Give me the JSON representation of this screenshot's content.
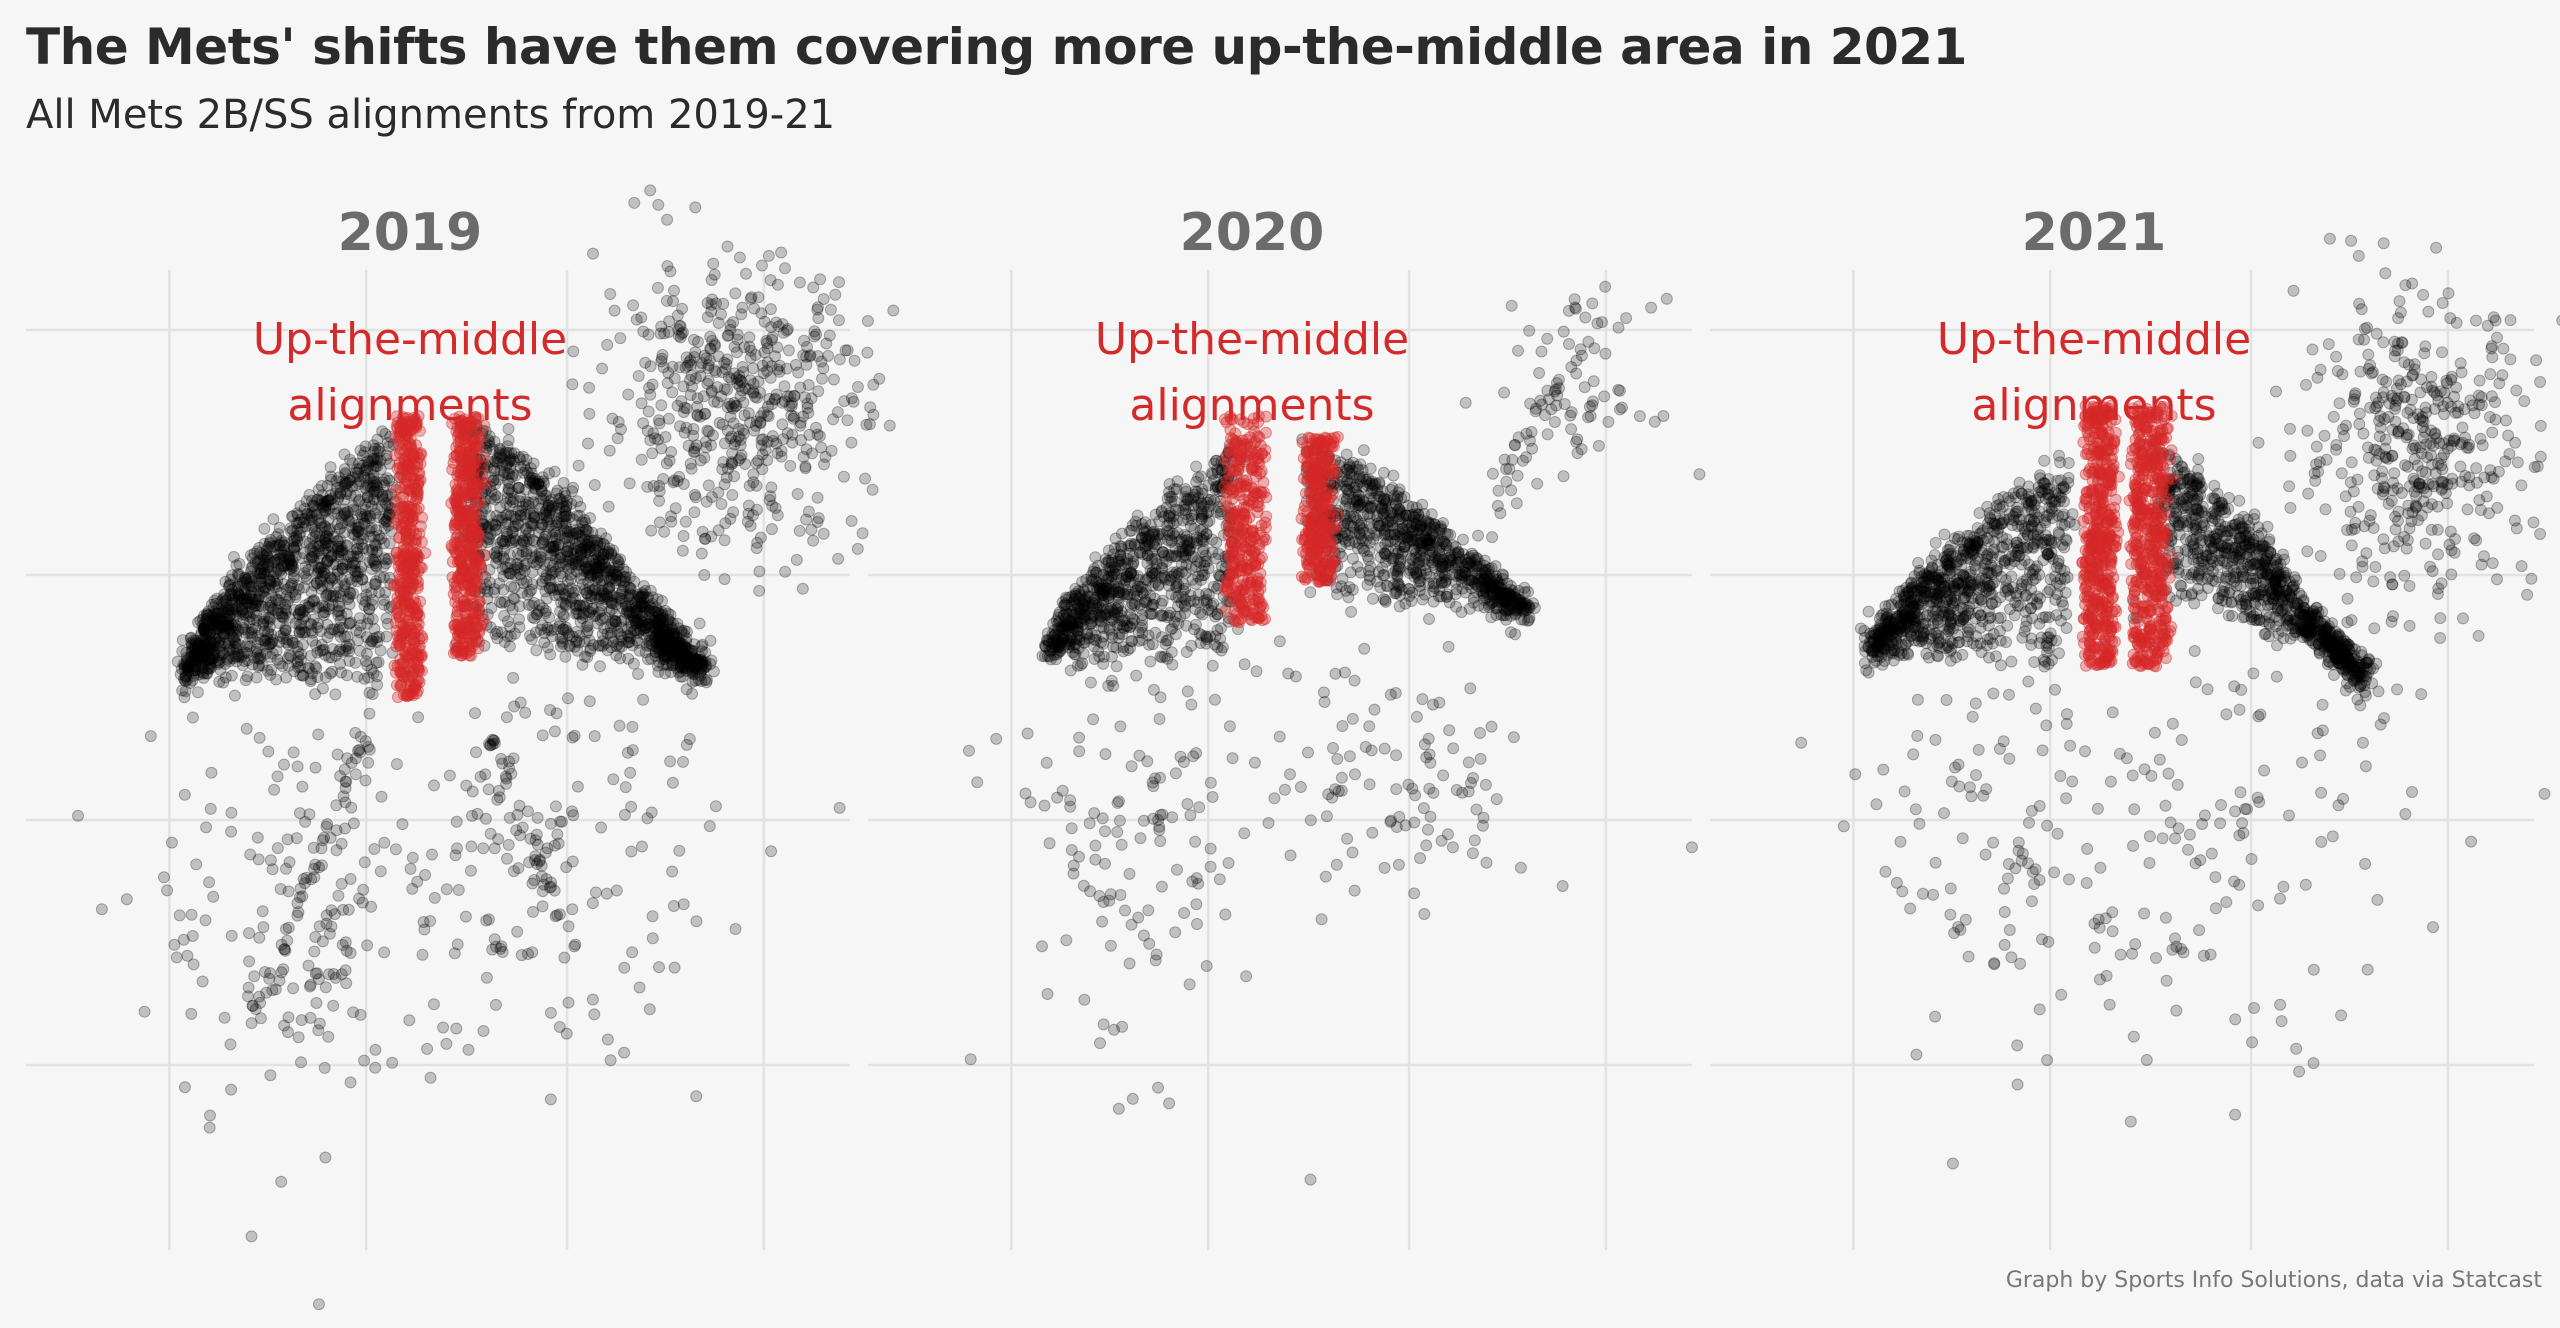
{
  "title": "The Mets' shifts have them covering more up-the-middle area in 2021",
  "subtitle": "All Mets 2B/SS alignments from 2019-21",
  "caption": "Graph by Sports Info Solutions, data via Statcast",
  "colors": {
    "background": "#f6f6f6",
    "point_default": "#000000",
    "point_highlight": "#d62828",
    "annotation": "#d42a2a",
    "panel_title": "#6b6b6b",
    "grid": "#e2e2e2"
  },
  "chart_data": {
    "type": "scatter",
    "facet_by": "year",
    "facets": [
      "2019",
      "2020",
      "2021"
    ],
    "highlight_annotation": [
      "Up-the-middle",
      "alignments"
    ],
    "highlight_label": "Up-the-middle alignments",
    "point_opacity": 0.22,
    "axes_labels_shown": false,
    "grid": true,
    "xlim": [
      -2.1,
      2.1
    ],
    "ylim": [
      -0.8,
      3.9
    ],
    "panels": [
      {
        "year": "2019",
        "clusters": [
          {
            "kind": "wing",
            "side": "left",
            "from": [
              -1.3,
              1.95
            ],
            "peak": [
              -0.25,
              3.15
            ],
            "to": [
              -0.2,
              1.85
            ],
            "n": 1300
          },
          {
            "kind": "wing",
            "side": "right",
            "from": [
              0.15,
              2.05
            ],
            "peak": [
              0.35,
              3.15
            ],
            "to": [
              1.35,
              1.95
            ],
            "n": 1300
          },
          {
            "kind": "blob",
            "center": [
              1.5,
              3.25
            ],
            "spread": [
              0.34,
              0.34
            ],
            "n": 520
          },
          {
            "kind": "scatter",
            "center": [
              -0.65,
              0.8
            ],
            "spread": [
              0.4,
              0.55
            ],
            "n": 180
          },
          {
            "kind": "scatter",
            "center": [
              0.55,
              1.15
            ],
            "spread": [
              0.42,
              0.5
            ],
            "n": 160
          },
          {
            "kind": "streak",
            "from": [
              -0.35,
              1.7
            ],
            "to": [
              -0.95,
              0.3
            ],
            "n": 55
          },
          {
            "kind": "streak",
            "from": [
              0.25,
              1.7
            ],
            "to": [
              0.7,
              0.6
            ],
            "n": 45
          },
          {
            "kind": "highlight",
            "x": [
              -0.22,
              -0.1
            ],
            "y": [
              1.85,
              3.2
            ],
            "n": 420
          },
          {
            "kind": "highlight",
            "x": [
              0.08,
              0.2
            ],
            "y": [
              2.05,
              3.2
            ],
            "n": 420
          }
        ]
      },
      {
        "year": "2020",
        "clusters": [
          {
            "kind": "wing",
            "side": "left",
            "from": [
              -1.2,
              2.05
            ],
            "peak": [
              -0.25,
              3.05
            ],
            "to": [
              -0.2,
              2.0
            ],
            "n": 850
          },
          {
            "kind": "wing",
            "side": "right",
            "from": [
              0.15,
              2.3
            ],
            "peak": [
              0.4,
              3.05
            ],
            "to": [
              1.25,
              2.25
            ],
            "n": 850
          },
          {
            "kind": "blob",
            "center": [
              1.5,
              3.3
            ],
            "spread": [
              0.2,
              0.22
            ],
            "n": 70
          },
          {
            "kind": "scatter",
            "center": [
              -0.75,
              1.2
            ],
            "spread": [
              0.35,
              0.55
            ],
            "n": 140
          },
          {
            "kind": "scatter",
            "center": [
              0.6,
              1.45
            ],
            "spread": [
              0.35,
              0.35
            ],
            "n": 110
          },
          {
            "kind": "streak",
            "from": [
              1.0,
              2.6
            ],
            "to": [
              1.6,
              3.6
            ],
            "n": 30
          },
          {
            "kind": "highlight",
            "x": [
              -0.28,
              -0.1
            ],
            "y": [
              2.2,
              3.2
            ],
            "n": 320
          },
          {
            "kind": "highlight",
            "x": [
              0.12,
              0.26
            ],
            "y": [
              2.4,
              3.1
            ],
            "n": 280
          }
        ]
      },
      {
        "year": "2021",
        "clusters": [
          {
            "kind": "wing",
            "side": "left",
            "from": [
              -1.3,
              2.05
            ],
            "peak": [
              -0.3,
              3.0
            ],
            "to": [
              -0.15,
              2.0
            ],
            "n": 900
          },
          {
            "kind": "wing",
            "side": "right",
            "from": [
              0.2,
              2.3
            ],
            "peak": [
              0.45,
              3.0
            ],
            "to": [
              1.25,
              1.85
            ],
            "n": 900
          },
          {
            "kind": "blob",
            "center": [
              1.5,
              3.05
            ],
            "spread": [
              0.3,
              0.35
            ],
            "n": 420
          },
          {
            "kind": "scatter",
            "center": [
              -0.6,
              1.15
            ],
            "spread": [
              0.35,
              0.55
            ],
            "n": 120
          },
          {
            "kind": "scatter",
            "center": [
              0.55,
              1.2
            ],
            "spread": [
              0.45,
              0.55
            ],
            "n": 130
          },
          {
            "kind": "highlight",
            "x": [
              -0.2,
              -0.05
            ],
            "y": [
              2.0,
              3.25
            ],
            "n": 480
          },
          {
            "kind": "highlight",
            "x": [
              0.05,
              0.22
            ],
            "y": [
              2.0,
              3.25
            ],
            "n": 480
          }
        ]
      }
    ]
  }
}
